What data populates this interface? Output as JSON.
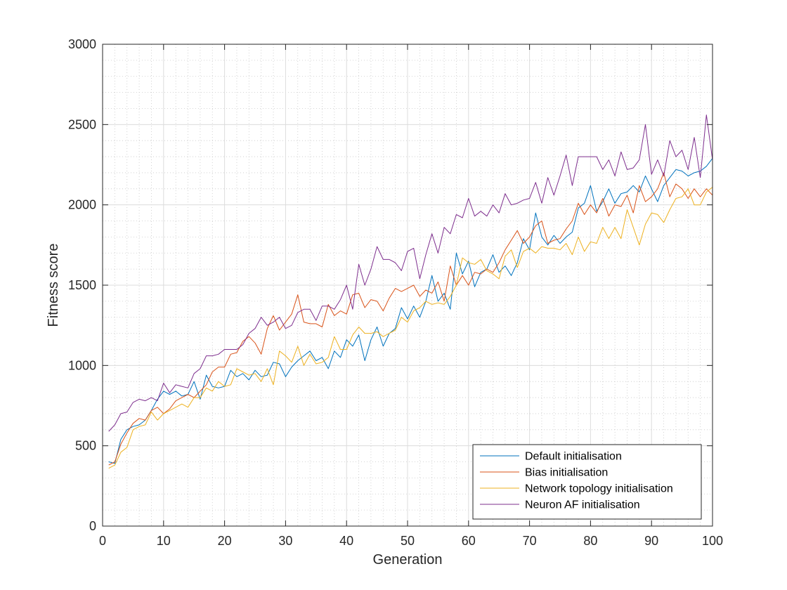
{
  "chart_data": {
    "type": "line",
    "title": "",
    "xlabel": "Generation",
    "ylabel": "Fitness score",
    "xlim": [
      0,
      100
    ],
    "ylim": [
      0,
      3000
    ],
    "xticks": [
      0,
      10,
      20,
      30,
      40,
      50,
      60,
      70,
      80,
      90,
      100
    ],
    "yticks": [
      0,
      500,
      1000,
      1500,
      2000,
      2500,
      3000
    ],
    "grid": true,
    "minor_grid": true,
    "legend_position": "bottom-right",
    "series": [
      {
        "name": "Default initialisation",
        "color": "#0072BD",
        "x": [
          1,
          2,
          3,
          4,
          5,
          6,
          7,
          8,
          9,
          10,
          11,
          12,
          13,
          14,
          15,
          16,
          17,
          18,
          19,
          20,
          21,
          22,
          23,
          24,
          25,
          26,
          27,
          28,
          29,
          30,
          31,
          32,
          33,
          34,
          35,
          36,
          37,
          38,
          39,
          40,
          41,
          42,
          43,
          44,
          45,
          46,
          47,
          48,
          49,
          50,
          51,
          52,
          53,
          54,
          55,
          56,
          57,
          58,
          59,
          60,
          61,
          62,
          63,
          64,
          65,
          66,
          67,
          68,
          69,
          70,
          71,
          72,
          73,
          74,
          75,
          76,
          77,
          78,
          79,
          80,
          81,
          82,
          83,
          84,
          85,
          86,
          87,
          88,
          89,
          90,
          91,
          92,
          93,
          94,
          95,
          96,
          97,
          98,
          99,
          100
        ],
        "y": [
          400,
          390,
          540,
          600,
          620,
          630,
          660,
          720,
          790,
          840,
          820,
          840,
          810,
          820,
          900,
          790,
          940,
          870,
          860,
          870,
          970,
          930,
          950,
          910,
          970,
          930,
          940,
          1020,
          1010,
          930,
          990,
          1030,
          1060,
          1090,
          1030,
          1050,
          980,
          1090,
          1050,
          1160,
          1120,
          1190,
          1030,
          1160,
          1240,
          1120,
          1200,
          1230,
          1360,
          1290,
          1370,
          1300,
          1400,
          1560,
          1400,
          1450,
          1350,
          1700,
          1570,
          1650,
          1490,
          1580,
          1600,
          1690,
          1580,
          1620,
          1560,
          1640,
          1790,
          1720,
          1950,
          1800,
          1750,
          1810,
          1760,
          1800,
          1830,
          1980,
          2010,
          2120,
          1960,
          2020,
          2100,
          2010,
          2070,
          2080,
          2120,
          2080,
          2180,
          2100,
          2020,
          2120,
          2170,
          2220,
          2210,
          2180,
          2200,
          2210,
          2240,
          2290
        ]
      },
      {
        "name": "Bias initialisation",
        "color": "#D95319",
        "x": [
          1,
          2,
          3,
          4,
          5,
          6,
          7,
          8,
          9,
          10,
          11,
          12,
          13,
          14,
          15,
          16,
          17,
          18,
          19,
          20,
          21,
          22,
          23,
          24,
          25,
          26,
          27,
          28,
          29,
          30,
          31,
          32,
          33,
          34,
          35,
          36,
          37,
          38,
          39,
          40,
          41,
          42,
          43,
          44,
          45,
          46,
          47,
          48,
          49,
          50,
          51,
          52,
          53,
          54,
          55,
          56,
          57,
          58,
          59,
          60,
          61,
          62,
          63,
          64,
          65,
          66,
          67,
          68,
          69,
          70,
          71,
          72,
          73,
          74,
          75,
          76,
          77,
          78,
          79,
          80,
          81,
          82,
          83,
          84,
          85,
          86,
          87,
          88,
          89,
          90,
          91,
          92,
          93,
          94,
          95,
          96,
          97,
          98,
          99,
          100
        ],
        "y": [
          380,
          400,
          510,
          580,
          640,
          670,
          660,
          720,
          740,
          700,
          730,
          780,
          800,
          820,
          800,
          840,
          880,
          960,
          990,
          990,
          1070,
          1080,
          1150,
          1180,
          1140,
          1070,
          1230,
          1310,
          1220,
          1270,
          1320,
          1440,
          1270,
          1260,
          1260,
          1240,
          1380,
          1310,
          1340,
          1320,
          1440,
          1450,
          1360,
          1410,
          1400,
          1340,
          1420,
          1480,
          1460,
          1480,
          1500,
          1430,
          1470,
          1450,
          1520,
          1400,
          1620,
          1500,
          1560,
          1500,
          1580,
          1570,
          1600,
          1580,
          1640,
          1720,
          1780,
          1840,
          1760,
          1800,
          1870,
          1900,
          1760,
          1780,
          1790,
          1850,
          1900,
          2010,
          1940,
          2000,
          1950,
          2040,
          1930,
          2000,
          1990,
          2060,
          1950,
          2120,
          2020,
          2050,
          2100,
          2200,
          2050,
          2130,
          2100,
          2040,
          2100,
          2050,
          2100,
          2060
        ]
      },
      {
        "name": "Network topology initialisation",
        "color": "#EDB120",
        "x": [
          1,
          2,
          3,
          4,
          5,
          6,
          7,
          8,
          9,
          10,
          11,
          12,
          13,
          14,
          15,
          16,
          17,
          18,
          19,
          20,
          21,
          22,
          23,
          24,
          25,
          26,
          27,
          28,
          29,
          30,
          31,
          32,
          33,
          34,
          35,
          36,
          37,
          38,
          39,
          40,
          41,
          42,
          43,
          44,
          45,
          46,
          47,
          48,
          49,
          50,
          51,
          52,
          53,
          54,
          55,
          56,
          57,
          58,
          59,
          60,
          61,
          62,
          63,
          64,
          65,
          66,
          67,
          68,
          69,
          70,
          71,
          72,
          73,
          74,
          75,
          76,
          77,
          78,
          79,
          80,
          81,
          82,
          83,
          84,
          85,
          86,
          87,
          88,
          89,
          90,
          91,
          92,
          93,
          94,
          95,
          96,
          97,
          98,
          99,
          100
        ],
        "y": [
          360,
          380,
          460,
          490,
          600,
          620,
          630,
          710,
          660,
          700,
          720,
          740,
          760,
          740,
          800,
          800,
          860,
          840,
          900,
          870,
          880,
          980,
          960,
          940,
          950,
          900,
          980,
          880,
          1090,
          1060,
          1020,
          1120,
          1000,
          1070,
          1010,
          1020,
          1050,
          1180,
          1100,
          1100,
          1190,
          1240,
          1200,
          1200,
          1210,
          1180,
          1200,
          1220,
          1300,
          1270,
          1340,
          1360,
          1400,
          1380,
          1390,
          1380,
          1430,
          1500,
          1670,
          1640,
          1630,
          1660,
          1590,
          1570,
          1540,
          1680,
          1720,
          1610,
          1710,
          1730,
          1700,
          1740,
          1730,
          1730,
          1720,
          1760,
          1690,
          1800,
          1710,
          1770,
          1760,
          1860,
          1790,
          1860,
          1790,
          1970,
          1860,
          1750,
          1880,
          1950,
          1940,
          1890,
          1970,
          2040,
          2050,
          2100,
          2000,
          2000,
          2080,
          2110
        ]
      },
      {
        "name": "Neuron AF initialisation",
        "color": "#7E2F8E",
        "x": [
          1,
          2,
          3,
          4,
          5,
          6,
          7,
          8,
          9,
          10,
          11,
          12,
          13,
          14,
          15,
          16,
          17,
          18,
          19,
          20,
          21,
          22,
          23,
          24,
          25,
          26,
          27,
          28,
          29,
          30,
          31,
          32,
          33,
          34,
          35,
          36,
          37,
          38,
          39,
          40,
          41,
          42,
          43,
          44,
          45,
          46,
          47,
          48,
          49,
          50,
          51,
          52,
          53,
          54,
          55,
          56,
          57,
          58,
          59,
          60,
          61,
          62,
          63,
          64,
          65,
          66,
          67,
          68,
          69,
          70,
          71,
          72,
          73,
          74,
          75,
          76,
          77,
          78,
          79,
          80,
          81,
          82,
          83,
          84,
          85,
          86,
          87,
          88,
          89,
          90,
          91,
          92,
          93,
          94,
          95,
          96,
          97,
          98,
          99,
          100
        ],
        "y": [
          590,
          630,
          700,
          710,
          770,
          790,
          780,
          800,
          780,
          890,
          830,
          880,
          870,
          860,
          950,
          980,
          1060,
          1060,
          1070,
          1100,
          1100,
          1100,
          1130,
          1200,
          1230,
          1300,
          1250,
          1270,
          1300,
          1230,
          1250,
          1330,
          1350,
          1350,
          1280,
          1370,
          1370,
          1350,
          1410,
          1500,
          1350,
          1630,
          1500,
          1600,
          1740,
          1660,
          1660,
          1640,
          1590,
          1710,
          1730,
          1540,
          1690,
          1820,
          1700,
          1860,
          1820,
          1940,
          1920,
          2040,
          1930,
          1960,
          1930,
          2000,
          1950,
          2070,
          2000,
          2010,
          2030,
          2040,
          2140,
          2010,
          2170,
          2060,
          2180,
          2310,
          2120,
          2300,
          2300,
          2300,
          2300,
          2220,
          2280,
          2180,
          2330,
          2220,
          2230,
          2280,
          2500,
          2190,
          2280,
          2180,
          2400,
          2300,
          2340,
          2220,
          2420,
          2170,
          2560,
          2280
        ]
      }
    ]
  }
}
